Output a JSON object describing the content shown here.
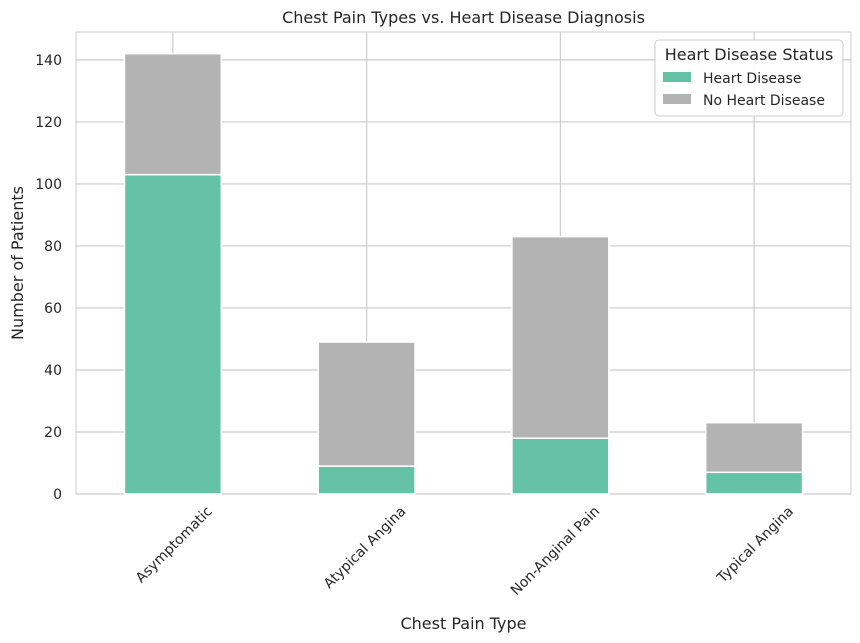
{
  "chart_data": {
    "type": "bar",
    "stacked": true,
    "title": "Chest Pain Types vs. Heart Disease Diagnosis",
    "xlabel": "Chest Pain Type",
    "ylabel": "Number of Patients",
    "categories": [
      "Asymptomatic",
      "Atypical Angina",
      "Non-Anginal Pain",
      "Typical Angina"
    ],
    "series": [
      {
        "name": "Heart Disease",
        "values": [
          103,
          9,
          18,
          7
        ],
        "color": "#66c2a5"
      },
      {
        "name": "No Heart Disease",
        "values": [
          39,
          40,
          65,
          16
        ],
        "color": "#b3b3b3"
      }
    ],
    "ylim": [
      0,
      149
    ],
    "yticks": [
      0,
      20,
      40,
      60,
      80,
      100,
      120,
      140
    ],
    "grid": true,
    "legend": {
      "title": "Heart Disease Status",
      "placement": "top-right"
    }
  }
}
